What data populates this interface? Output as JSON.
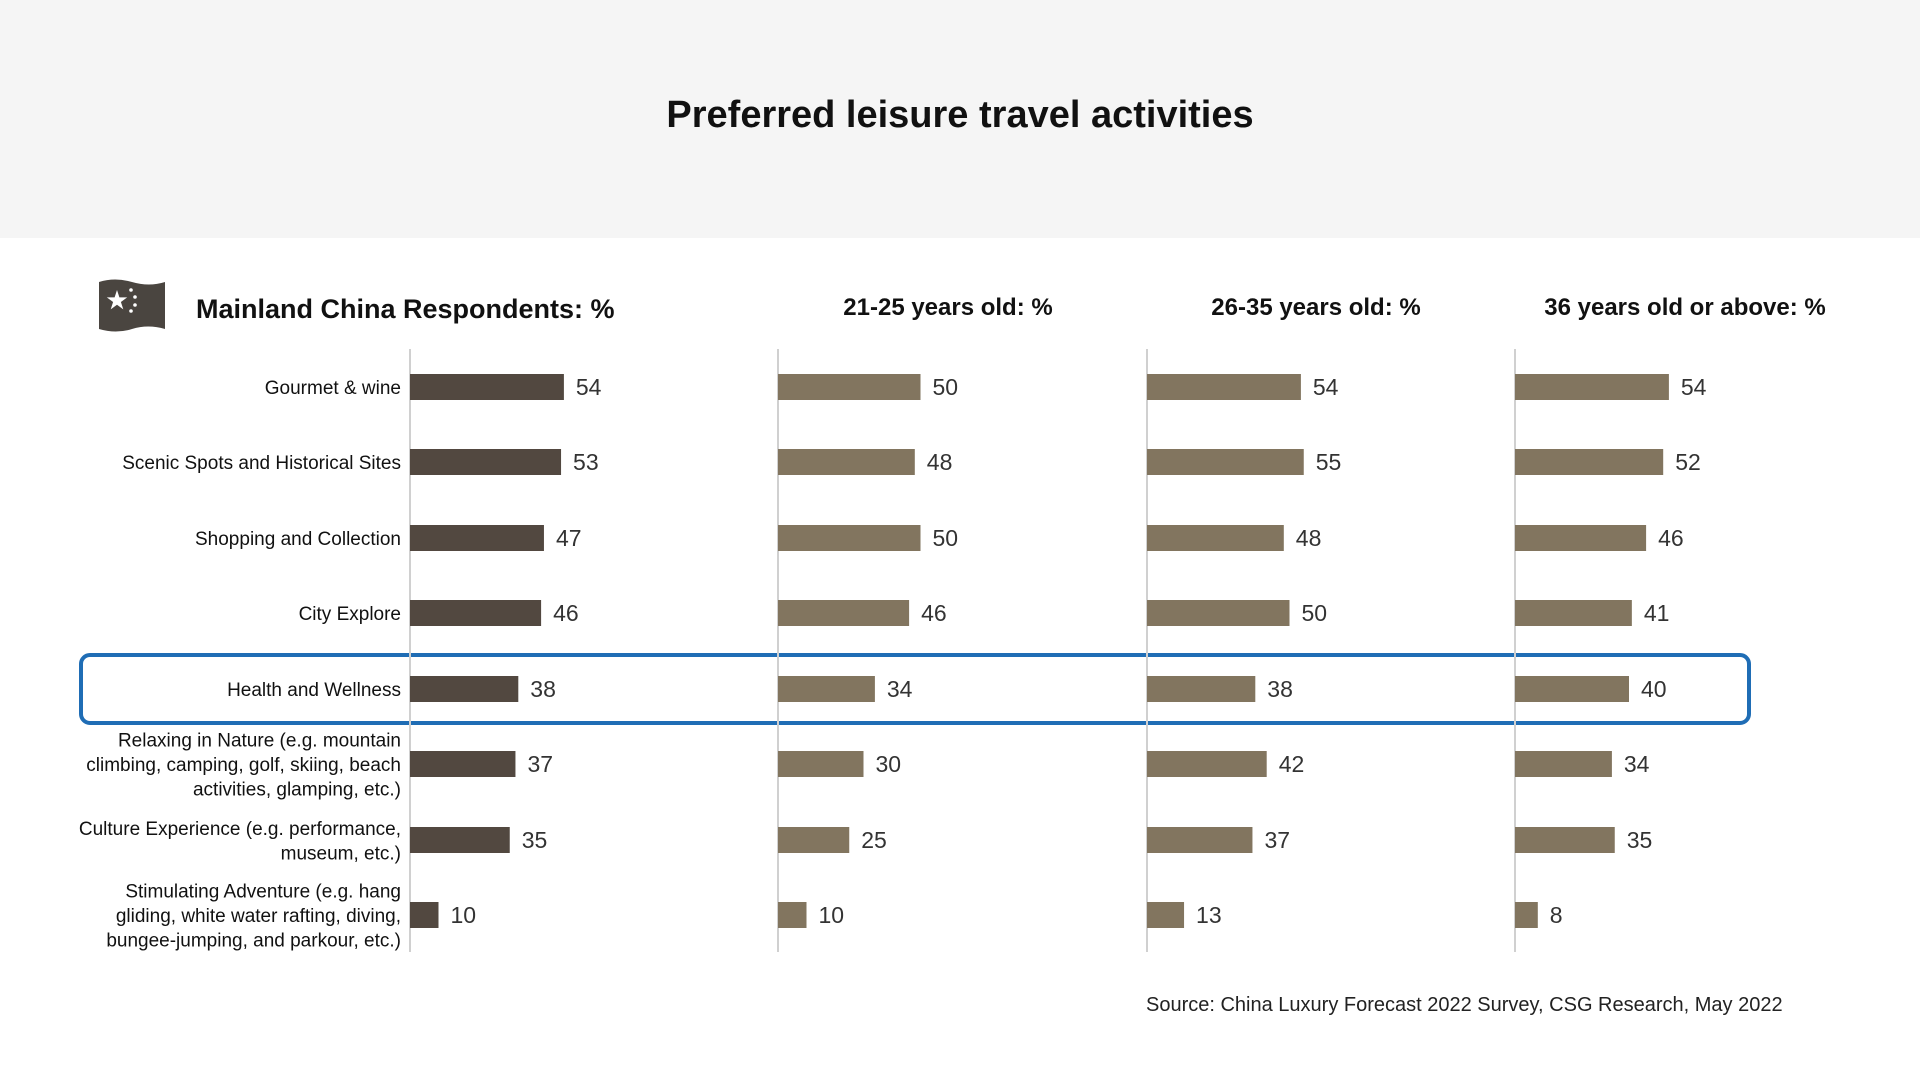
{
  "title": "Preferred leisure travel activities",
  "source": "Source: China Luxury Forecast 2022 Survey, CSG Research, May 2022",
  "flag_icon": "china-flag-icon",
  "colors": {
    "header_background": "#f5f5f5",
    "primary_bar": "#524840",
    "secondary_bar": "#82755f",
    "highlight_outline": "#1f6db5",
    "axis_line": "#d0d0d0"
  },
  "chart_data": {
    "type": "bar",
    "orientation": "horizontal",
    "xlim": [
      0,
      100
    ],
    "highlighted_category": "Health and Wellness",
    "categories": [
      [
        "Gourmet & wine"
      ],
      [
        "Scenic Spots and Historical Sites"
      ],
      [
        "Shopping and Collection"
      ],
      [
        "City Explore"
      ],
      [
        "Health and Wellness"
      ],
      [
        "Relaxing in Nature (e.g. mountain",
        "climbing, camping, golf, skiing, beach",
        "activities, glamping, etc.)"
      ],
      [
        "Culture Experience (e.g. performance,",
        "museum, etc.)"
      ],
      [
        "Stimulating Adventure (e.g. hang",
        "gliding, white water rafting, diving,",
        "bungee-jumping, and parkour, etc.)"
      ]
    ],
    "series": [
      {
        "name": "Mainland China Respondents: %",
        "values": [
          54,
          53,
          47,
          46,
          38,
          37,
          35,
          10
        ]
      },
      {
        "name": "21-25 years old: %",
        "values": [
          50,
          48,
          50,
          46,
          34,
          30,
          25,
          10
        ]
      },
      {
        "name": "26-35 years old: %",
        "values": [
          54,
          55,
          48,
          50,
          38,
          42,
          37,
          13
        ]
      },
      {
        "name": "36 years old or above: %",
        "values": [
          54,
          52,
          46,
          41,
          40,
          34,
          35,
          8
        ]
      }
    ]
  }
}
